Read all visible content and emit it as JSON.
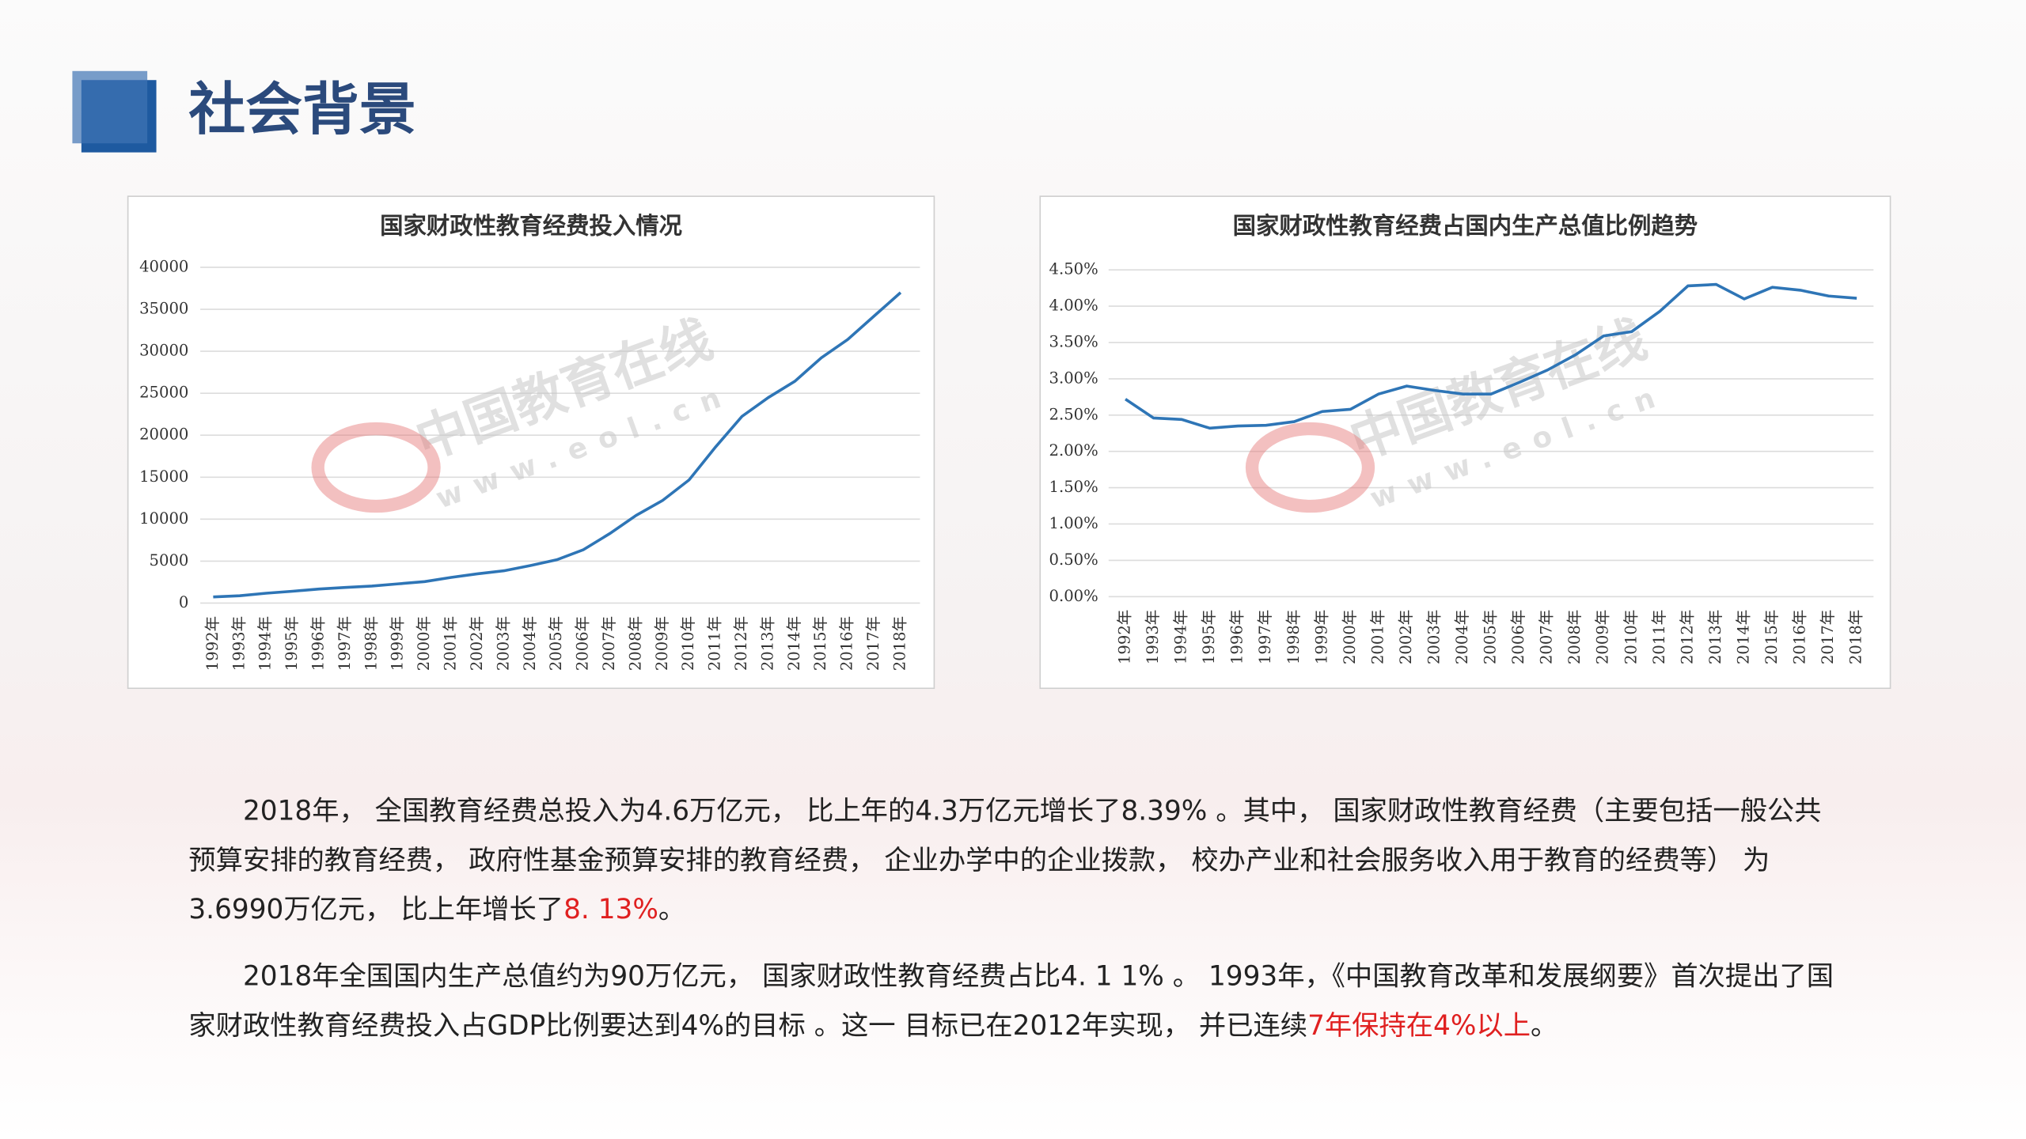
{
  "header": {
    "title": "社会背景"
  },
  "chart_data": [
    {
      "type": "line",
      "title": "国家财政性教育经费投入情况",
      "categories": [
        "1992年",
        "1993年",
        "1994年",
        "1995年",
        "1996年",
        "1997年",
        "1998年",
        "1999年",
        "2000年",
        "2001年",
        "2002年",
        "2003年",
        "2004年",
        "2005年",
        "2006年",
        "2007年",
        "2008年",
        "2009年",
        "2010年",
        "2011年",
        "2012年",
        "2013年",
        "2014年",
        "2015年",
        "2016年",
        "2017年",
        "2018年"
      ],
      "values": [
        730,
        870,
        1175,
        1410,
        1670,
        1860,
        2030,
        2290,
        2560,
        3060,
        3490,
        3850,
        4470,
        5160,
        6350,
        8280,
        10450,
        12230,
        14670,
        18590,
        22240,
        24490,
        26420,
        29220,
        31400,
        34200,
        36990
      ],
      "color": "#2e75b6",
      "ylim": [
        0,
        40000
      ],
      "yticks": [
        0,
        5000,
        10000,
        15000,
        20000,
        25000,
        30000,
        35000,
        40000
      ],
      "grid": true
    },
    {
      "type": "line",
      "title": "国家财政性教育经费占国内生产总值比例趋势",
      "categories": [
        "1992年",
        "1993年",
        "1994年",
        "1995年",
        "1996年",
        "1997年",
        "1998年",
        "1999年",
        "2000年",
        "2001年",
        "2002年",
        "2003年",
        "2004年",
        "2005年",
        "2006年",
        "2007年",
        "2008年",
        "2009年",
        "2010年",
        "2011年",
        "2012年",
        "2013年",
        "2014年",
        "2015年",
        "2016年",
        "2017年",
        "2018年"
      ],
      "values": [
        2.72,
        2.46,
        2.44,
        2.32,
        2.35,
        2.36,
        2.41,
        2.55,
        2.58,
        2.79,
        2.9,
        2.84,
        2.79,
        2.79,
        2.95,
        3.12,
        3.33,
        3.59,
        3.65,
        3.93,
        4.28,
        4.3,
        4.1,
        4.26,
        4.22,
        4.14,
        4.11
      ],
      "color": "#2e75b6",
      "ylim": [
        0,
        4.5
      ],
      "yticks": [
        {
          "value": 0,
          "label": "0.00%"
        },
        {
          "value": 0.5,
          "label": "0.50%"
        },
        {
          "value": 1,
          "label": "1.00%"
        },
        {
          "value": 1.5,
          "label": "1.50%"
        },
        {
          "value": 2,
          "label": "2.00%"
        },
        {
          "value": 2.5,
          "label": "2.50%"
        },
        {
          "value": 3,
          "label": "3.00%"
        },
        {
          "value": 3.5,
          "label": "3.50%"
        },
        {
          "value": 4,
          "label": "4.00%"
        },
        {
          "value": 4.5,
          "label": "4.50%"
        }
      ],
      "grid": true
    }
  ],
  "watermark": [
    "中国教育在线",
    "www.eol.cn"
  ],
  "paragraphs": [
    {
      "segments": [
        {
          "text": "2018年， 全国教育经费总投入为4.6万亿元， 比上年的4.3万亿元增长了8.39% 。其中， 国家财政性教育经费（主要包括一般公共预算安排的教育经费， 政府性基金预算安排的教育经费， 企业办学中的企业拨款， 校办产业和社会服务收入用于教育的经费等） 为3.6990万亿元， 比上年增长了",
          "color": "#222222"
        },
        {
          "text": "8. 13%",
          "color": "#e02020"
        },
        {
          "text": "。",
          "color": "#222222"
        }
      ]
    },
    {
      "segments": [
        {
          "text": "2018年全国国内生产总值约为90万亿元， 国家财政性教育经费占比4. 1 1% 。 1993年，《中国教育改革和发展纲要》首次提出了国家财政性教育经费投入占GDP比例要达到4%的目标 。这一 目标已在2012年实现， 并已连续",
          "color": "#222222"
        },
        {
          "text": "7年保持在4%以上",
          "color": "#e02020"
        },
        {
          "text": "。",
          "color": "#222222"
        }
      ]
    }
  ]
}
